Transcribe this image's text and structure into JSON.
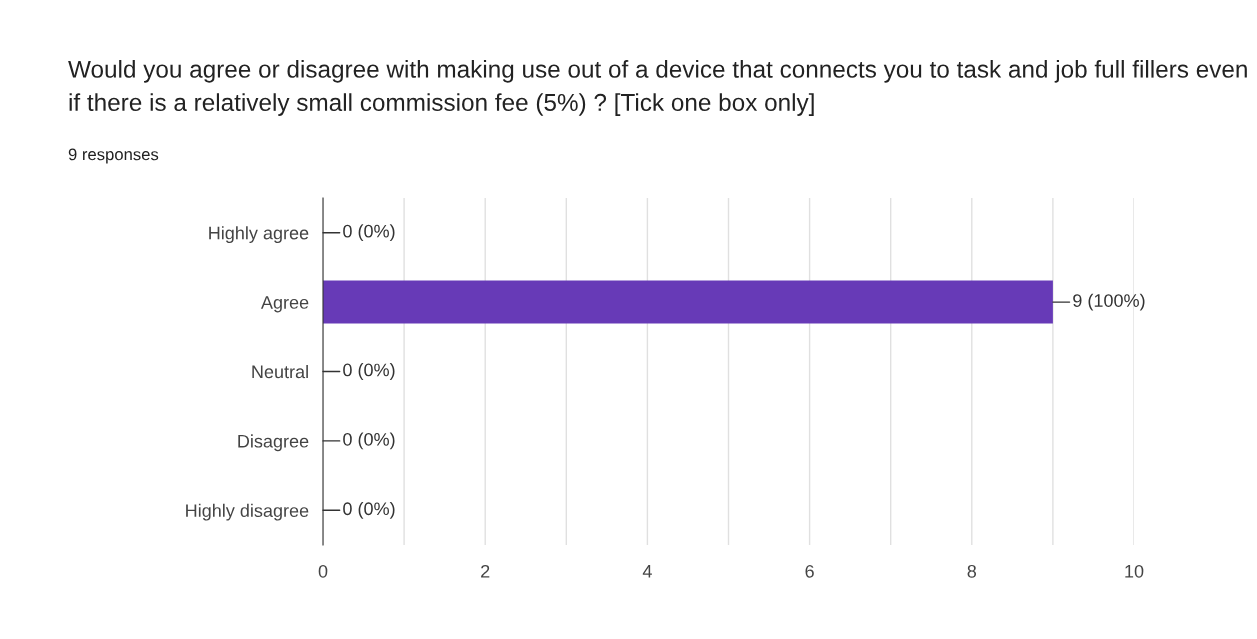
{
  "chart_data": {
    "type": "bar",
    "orientation": "horizontal",
    "title": "Would you agree or disagree with making use out of a device that connects you to task and job full fillers even if there is a relatively small commission fee (5%) ? [Tick one box only]",
    "subtitle": "9 responses",
    "categories": [
      "Highly agree",
      "Agree",
      "Neutral",
      "Disagree",
      "Highly disagree"
    ],
    "values": [
      0,
      9,
      0,
      0,
      0
    ],
    "value_labels": [
      "0 (0%)",
      "9 (100%)",
      "0 (0%)",
      "0 (0%)",
      "0 (0%)"
    ],
    "color": "#673ab7",
    "xlim": [
      0,
      10
    ],
    "xticks": [
      0,
      {
        "value": 1,
        "label": null
      },
      2,
      {
        "value": 3,
        "label": null
      },
      4,
      {
        "value": 5,
        "label": null
      },
      6,
      {
        "value": 7,
        "label": null
      },
      8,
      {
        "value": 9,
        "label": null
      },
      10
    ],
    "grid": "x"
  }
}
